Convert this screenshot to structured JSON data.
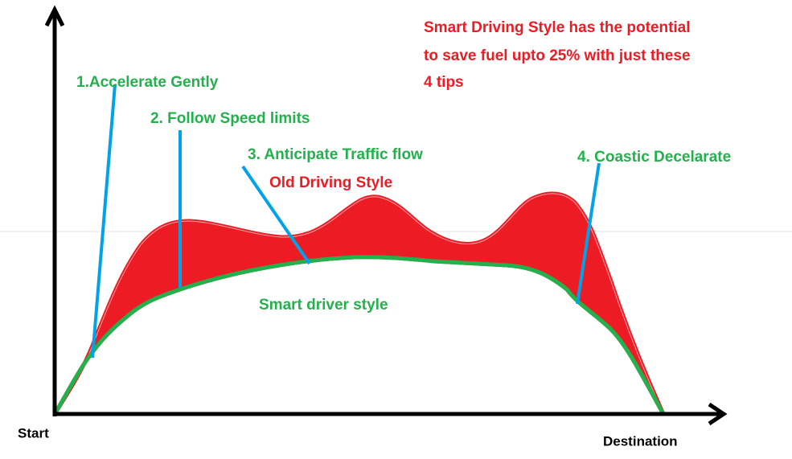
{
  "note_lines": [
    "Smart Driving Style has the potential",
    "to save fuel upto 25% with just these",
    "4 tips"
  ],
  "tips": [
    "1.Accelerate Gently",
    "2. Follow Speed limits",
    "3. Anticipate Traffic flow",
    "4. Coastic Decelarate"
  ],
  "curves": {
    "old": "Old Driving Style",
    "smart": "Smart driver style"
  },
  "axis": {
    "start": "Start",
    "end": "Destination"
  }
}
